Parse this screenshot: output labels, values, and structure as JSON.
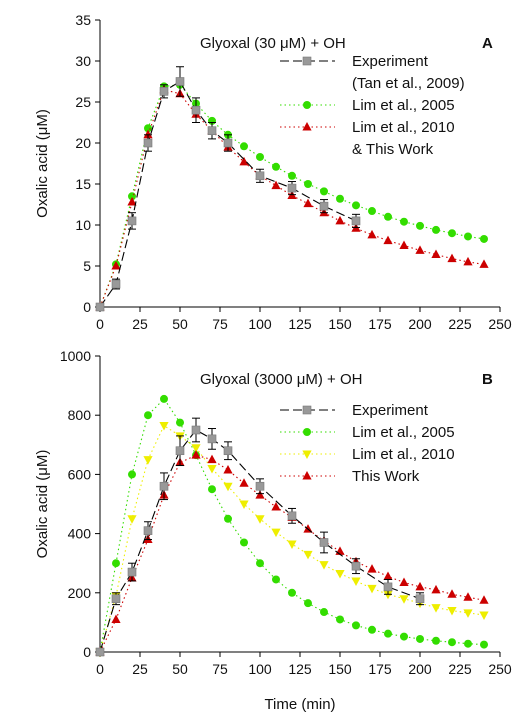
{
  "chart_data": [
    {
      "type": "scatter",
      "panel_label": "A",
      "title": "Glyoxal (30 μM) + OH",
      "xlabel": "",
      "ylabel": "Oxalic acid (μM)",
      "xlim": [
        0,
        250
      ],
      "ylim": [
        0,
        35
      ],
      "xticks": [
        0,
        25,
        50,
        75,
        100,
        125,
        150,
        175,
        200,
        225,
        250
      ],
      "yticks": [
        0,
        5,
        10,
        15,
        20,
        25,
        30,
        35
      ],
      "grid": false,
      "legend_position": "top-right",
      "series": [
        {
          "name": "Experiment",
          "name_line2": "(Tan et al., 2009)",
          "color": "#999999",
          "marker": "square",
          "line": "dashed",
          "x": [
            0,
            10,
            20,
            30,
            40,
            50,
            60,
            70,
            80,
            100,
            120,
            140,
            160
          ],
          "y": [
            0,
            2.8,
            10.5,
            20.0,
            26.3,
            27.5,
            24.0,
            21.5,
            20.0,
            16.0,
            14.5,
            12.3,
            10.5
          ],
          "err": [
            0.3,
            0.6,
            1.0,
            1.0,
            0.8,
            1.8,
            1.5,
            1.0,
            1.0,
            0.8,
            0.8,
            0.8,
            0.8
          ]
        },
        {
          "name": "Lim et al., 2005",
          "color": "#33dd00",
          "marker": "circle",
          "line": "dotted",
          "x": [
            0,
            10,
            20,
            30,
            40,
            50,
            60,
            70,
            80,
            90,
            100,
            110,
            120,
            130,
            140,
            150,
            160,
            170,
            180,
            190,
            200,
            210,
            220,
            230,
            240
          ],
          "y": [
            0,
            5.2,
            13.5,
            21.8,
            26.9,
            27.1,
            24.8,
            22.7,
            21.0,
            19.6,
            18.3,
            17.1,
            16.0,
            15.0,
            14.1,
            13.2,
            12.4,
            11.7,
            11.0,
            10.4,
            9.9,
            9.4,
            9.0,
            8.6,
            8.3
          ]
        },
        {
          "name": "Lim et al., 2010",
          "name_line2": "& This Work",
          "color": "#cc0000",
          "marker": "triangle",
          "line": "dotted",
          "x": [
            0,
            10,
            20,
            30,
            40,
            50,
            60,
            70,
            80,
            90,
            100,
            110,
            120,
            130,
            140,
            150,
            160,
            170,
            180,
            190,
            200,
            210,
            220,
            230,
            240
          ],
          "y": [
            0,
            5.0,
            12.8,
            21.0,
            26.5,
            26.0,
            23.5,
            21.5,
            19.5,
            17.7,
            16.0,
            14.8,
            13.6,
            12.6,
            11.5,
            10.5,
            9.6,
            8.8,
            8.1,
            7.5,
            6.9,
            6.4,
            5.9,
            5.5,
            5.2
          ]
        }
      ]
    },
    {
      "type": "scatter",
      "panel_label": "B",
      "title": "Glyoxal (3000 μM) + OH",
      "xlabel": "Time (min)",
      "ylabel": "Oxalic acid (μM)",
      "xlim": [
        0,
        250
      ],
      "ylim": [
        0,
        1000
      ],
      "xticks": [
        0,
        25,
        50,
        75,
        100,
        125,
        150,
        175,
        200,
        225,
        250
      ],
      "yticks": [
        0,
        200,
        400,
        600,
        800,
        1000
      ],
      "grid": false,
      "legend_position": "top-right",
      "series": [
        {
          "name": "Experiment",
          "color": "#999999",
          "marker": "square",
          "line": "dashed",
          "x": [
            0,
            10,
            20,
            30,
            40,
            50,
            60,
            70,
            80,
            100,
            120,
            140,
            160,
            180,
            200
          ],
          "y": [
            0,
            180,
            270,
            410,
            560,
            680,
            750,
            720,
            680,
            560,
            460,
            370,
            290,
            220,
            180
          ],
          "err": [
            5,
            20,
            30,
            30,
            45,
            50,
            40,
            35,
            30,
            25,
            25,
            35,
            25,
            25,
            20
          ]
        },
        {
          "name": "Lim et al., 2005",
          "color": "#33dd00",
          "marker": "circle",
          "line": "dotted",
          "x": [
            0,
            10,
            20,
            30,
            40,
            50,
            60,
            70,
            80,
            90,
            100,
            110,
            120,
            130,
            140,
            150,
            160,
            170,
            180,
            190,
            200,
            210,
            220,
            230,
            240
          ],
          "y": [
            0,
            300,
            600,
            800,
            855,
            775,
            665,
            550,
            450,
            370,
            300,
            245,
            200,
            165,
            135,
            110,
            90,
            75,
            62,
            52,
            44,
            38,
            33,
            28,
            25
          ]
        },
        {
          "name": "Lim et al., 2010",
          "color": "#eeee00",
          "marker": "triangle-down",
          "line": "dotted",
          "x": [
            0,
            10,
            20,
            30,
            40,
            50,
            60,
            70,
            80,
            90,
            100,
            110,
            120,
            130,
            140,
            150,
            160,
            170,
            180,
            190,
            200,
            210,
            220,
            230,
            240
          ],
          "y": [
            0,
            190,
            450,
            650,
            765,
            730,
            690,
            620,
            560,
            500,
            450,
            405,
            365,
            330,
            295,
            265,
            240,
            215,
            195,
            180,
            165,
            150,
            140,
            132,
            125
          ]
        },
        {
          "name": "This Work",
          "color": "#cc0000",
          "marker": "triangle",
          "line": "dotted",
          "x": [
            0,
            10,
            20,
            30,
            40,
            50,
            60,
            70,
            80,
            90,
            100,
            110,
            120,
            130,
            140,
            150,
            160,
            170,
            180,
            190,
            200,
            210,
            220,
            230,
            240
          ],
          "y": [
            0,
            110,
            250,
            380,
            530,
            640,
            665,
            650,
            615,
            570,
            530,
            490,
            455,
            415,
            375,
            340,
            305,
            280,
            255,
            235,
            220,
            210,
            195,
            185,
            175
          ]
        }
      ]
    }
  ]
}
